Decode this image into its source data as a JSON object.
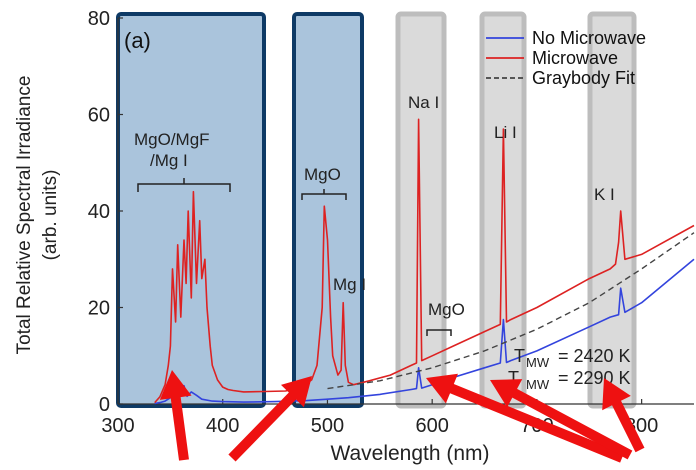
{
  "chart_data": {
    "type": "line",
    "panel_label": "(a)",
    "xlabel": "Wavelength (nm)",
    "ylabel_line1": "Total Relative Spectral Irradiance",
    "ylabel_line2": "(arb. units)",
    "xlim": [
      300,
      850
    ],
    "ylim": [
      0,
      80
    ],
    "x_ticks": [
      {
        "value": 300,
        "label": "300"
      },
      {
        "value": 400,
        "label": "400"
      },
      {
        "value": 500,
        "label": "500"
      },
      {
        "value": 600,
        "label": "600"
      },
      {
        "value": 700,
        "label": "700"
      },
      {
        "value": 800,
        "label": "800"
      }
    ],
    "y_ticks": [
      {
        "value": 0,
        "label": "0"
      },
      {
        "value": 20,
        "label": "20"
      },
      {
        "value": 40,
        "label": "40"
      },
      {
        "value": 60,
        "label": "60"
      },
      {
        "value": 80,
        "label": "80"
      }
    ],
    "legend": {
      "placement": "top-right",
      "entries": [
        {
          "label": "No Microwave",
          "color": "#3344dd",
          "style": "solid"
        },
        {
          "label": "Microwave",
          "color": "#dd2222",
          "style": "solid"
        },
        {
          "label": "Graybody Fit",
          "color": "#444444",
          "style": "dashed"
        }
      ]
    },
    "series": [
      {
        "name": "No Microwave",
        "color": "#3344dd",
        "x": [
          335,
          340,
          345,
          350,
          352,
          355,
          358,
          360,
          363,
          366,
          370,
          375,
          380,
          390,
          400,
          420,
          450,
          480,
          500,
          520,
          550,
          580,
          585,
          587,
          590,
          600,
          620,
          650,
          665,
          668,
          671,
          675,
          700,
          750,
          770,
          778,
          780,
          784,
          800,
          850
        ],
        "y": [
          0.1,
          0.3,
          0.6,
          1.3,
          3.5,
          1.5,
          4.5,
          2.0,
          3.8,
          1.6,
          2.5,
          1.8,
          1.0,
          0.6,
          0.5,
          0.4,
          0.5,
          0.7,
          1.0,
          1.3,
          2.0,
          3.0,
          3.2,
          7.5,
          3.3,
          4.0,
          5.5,
          7.5,
          8.5,
          17.5,
          8.6,
          9.0,
          11.0,
          16.0,
          18.0,
          18.5,
          24.0,
          19.0,
          21.0,
          30.0
        ]
      },
      {
        "name": "Microwave",
        "color": "#dd2222",
        "x": [
          335,
          340,
          345,
          348,
          350,
          352,
          355,
          357,
          360,
          363,
          365,
          367,
          370,
          372,
          375,
          378,
          380,
          383,
          385,
          388,
          390,
          395,
          400,
          405,
          410,
          420,
          440,
          460,
          475,
          485,
          490,
          495,
          497,
          500,
          503,
          505,
          510,
          513,
          515,
          517,
          520,
          525,
          540,
          560,
          580,
          585,
          587,
          590,
          600,
          620,
          650,
          665,
          668,
          671,
          675,
          700,
          750,
          770,
          775,
          778,
          780,
          784,
          800,
          850
        ],
        "y": [
          0.3,
          1.5,
          4.0,
          8.0,
          12.0,
          28.0,
          17.0,
          33.0,
          18.0,
          34.0,
          25.0,
          40.0,
          22.0,
          44.0,
          25.0,
          38.0,
          26.0,
          30.0,
          20.0,
          12.0,
          8.0,
          5.0,
          3.5,
          3.0,
          2.8,
          2.5,
          2.6,
          2.7,
          3.5,
          5.0,
          8.0,
          20.0,
          41.0,
          34.0,
          18.0,
          10.0,
          6.0,
          7.0,
          21.0,
          8.0,
          4.5,
          4.0,
          4.8,
          6.0,
          8.0,
          8.5,
          59.0,
          9.0,
          10.0,
          12.0,
          15.0,
          16.5,
          57.0,
          17.0,
          17.5,
          20.0,
          26.0,
          28.0,
          29.0,
          33.5,
          40.0,
          30.0,
          31.0,
          37.0
        ]
      },
      {
        "name": "Graybody Fit",
        "color": "#444444",
        "x": [
          500,
          550,
          600,
          650,
          700,
          750,
          800,
          850
        ],
        "y": [
          3.2,
          4.8,
          7.5,
          11.0,
          15.5,
          21.0,
          28.0,
          35.5
        ]
      }
    ],
    "annotations": {
      "mgo_mgf_line1": "MgO/MgF",
      "mgo_mgf_line2": "/Mg I",
      "mgo_1": "MgO",
      "mg_i": "Mg I",
      "na_i": "Na I",
      "mgo_2": "MgO",
      "li_i": "Li I",
      "k_i": "K I",
      "t_mw_prefix": "T",
      "t_mw_sub": "MW",
      "t_mw_value": "= 2420 K",
      "t_mw2_prefix": "T",
      "t_mw2_sub": "MW",
      "t_mw2_value": "= 2290 K"
    },
    "highlight_colors": {
      "blue_fill": "#aac4dc",
      "blue_border": "#0e3a66",
      "gray_fill": "#d4d4d4",
      "gray_border": "#bdbdbd",
      "arrow": "#ee1111"
    }
  }
}
